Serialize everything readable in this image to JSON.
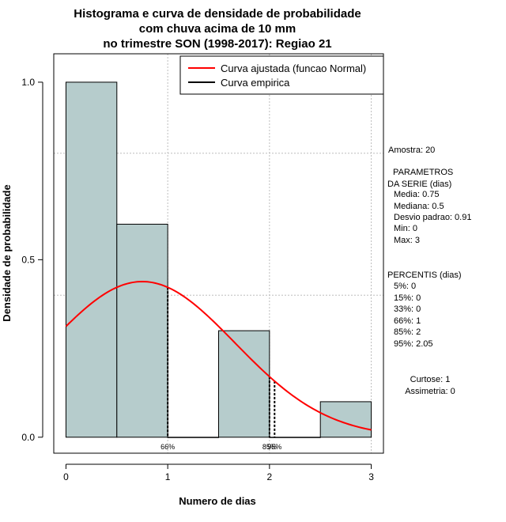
{
  "chart_data": {
    "type": "bar",
    "title_lines": [
      "Histograma e curva de densidade de probabilidade",
      "com chuva acima de 10 mm",
      "no trimestre SON (1998-2017): Regiao 21"
    ],
    "xlabel": "Numero de dias",
    "ylabel": "Densidade de probabilidade",
    "xlim": [
      -0.12,
      3.12
    ],
    "ylim": [
      -0.045,
      1.08
    ],
    "x_ticks": [
      "0",
      "1",
      "2",
      "3"
    ],
    "y_ticks": [
      "0.0",
      "0.5",
      "1.0"
    ],
    "bins": [
      {
        "from": 0.0,
        "to": 0.5,
        "density": 1.0
      },
      {
        "from": 0.5,
        "to": 1.0,
        "density": 0.6
      },
      {
        "from": 1.0,
        "to": 1.5,
        "density": 0.0
      },
      {
        "from": 1.5,
        "to": 2.0,
        "density": 0.3
      },
      {
        "from": 2.0,
        "to": 2.5,
        "density": 0.0
      },
      {
        "from": 2.5,
        "to": 3.0,
        "density": 0.1
      }
    ],
    "grid_x": [
      1,
      2,
      3
    ],
    "grid_y": [
      0.4,
      0.8
    ],
    "normal_curve": {
      "mean": 0.75,
      "sd": 0.91,
      "x_from": 0,
      "x_to": 3,
      "color": "#ff0000"
    },
    "percentile_markers": [
      {
        "x": 1.0,
        "label": "66%"
      },
      {
        "x": 2.0,
        "label": "85%"
      },
      {
        "x": 2.05,
        "label": "95%"
      }
    ],
    "legend": [
      {
        "label": "Curva ajustada (funcao Normal)",
        "color": "#ff0000"
      },
      {
        "label": "Curva empirica",
        "color": "#000000"
      }
    ],
    "bar_color": "#b6cccc"
  },
  "sidebar": {
    "sample": "Amostra: 20",
    "params_title": [
      " PARAMETROS",
      "DA SERIE (dias)"
    ],
    "params": [
      "Media: 0.75",
      "Mediana: 0.5",
      "Desvio padrao: 0.91",
      "Min: 0",
      "Max: 3"
    ],
    "pct_title": "PERCENTIS (dias)",
    "percentis": [
      "5%: 0",
      "15%: 0",
      "33%: 0",
      "66%: 1",
      "85%: 2",
      "95%: 2.05"
    ],
    "shape": [
      "Curtose: 1",
      "Assimetria: 0"
    ]
  }
}
